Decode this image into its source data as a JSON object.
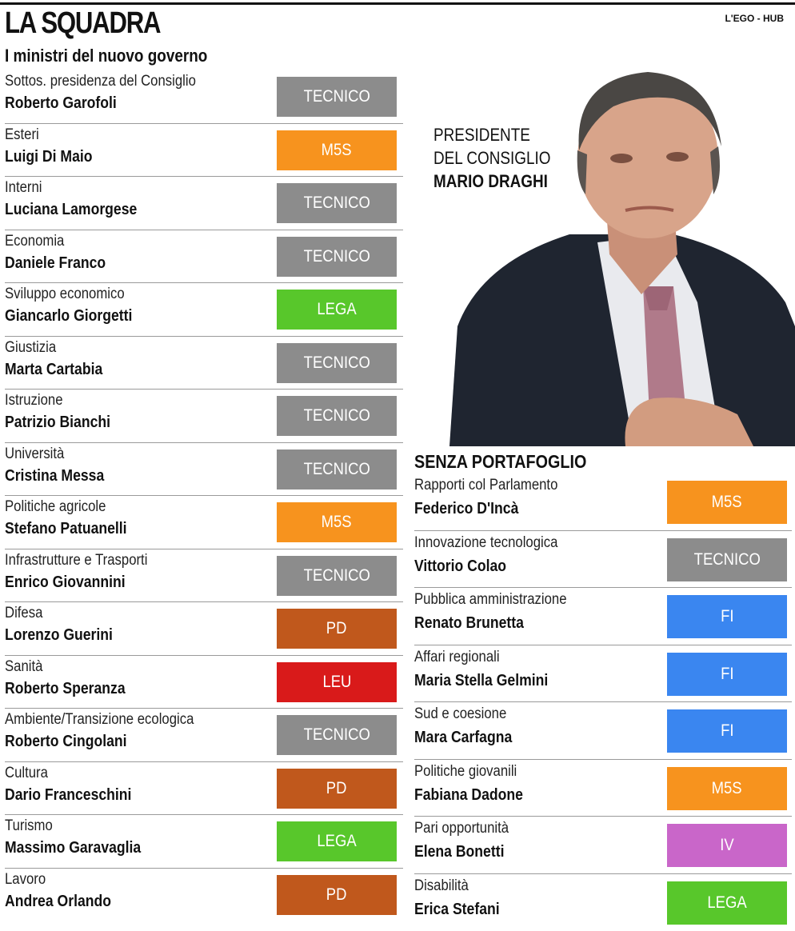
{
  "title": "LA SQUADRA",
  "source": "L'EGO - HUB",
  "subtitle": "I ministri del nuovo governo",
  "president": {
    "label_line1": "PRESIDENTE",
    "label_line2": "DEL CONSIGLIO",
    "name": "MARIO DRAGHI"
  },
  "colors": {
    "TECNICO": "#8c8c8c",
    "M5S": "#f7931e",
    "LEGA": "#58c72b",
    "PD": "#c0581c",
    "LEU": "#d91a1a",
    "FI": "#3a86f0",
    "IV": "#c966c9"
  },
  "ministers": [
    {
      "role": "Sottos. presidenza del Consiglio",
      "name": "Roberto Garofoli",
      "party": "TECNICO"
    },
    {
      "role": "Esteri",
      "name": "Luigi Di Maio",
      "party": "M5S"
    },
    {
      "role": "Interni",
      "name": "Luciana Lamorgese",
      "party": "TECNICO"
    },
    {
      "role": "Economia",
      "name": "Daniele Franco",
      "party": "TECNICO"
    },
    {
      "role": "Sviluppo economico",
      "name": "Giancarlo Giorgetti",
      "party": "LEGA"
    },
    {
      "role": "Giustizia",
      "name": "Marta Cartabia",
      "party": "TECNICO"
    },
    {
      "role": "Istruzione",
      "name": "Patrizio Bianchi",
      "party": "TECNICO"
    },
    {
      "role": "Università",
      "name": "Cristina Messa",
      "party": "TECNICO"
    },
    {
      "role": "Politiche agricole",
      "name": "Stefano Patuanelli",
      "party": "M5S"
    },
    {
      "role": "Infrastrutture e Trasporti",
      "name": "Enrico Giovannini",
      "party": "TECNICO"
    },
    {
      "role": "Difesa",
      "name": "Lorenzo Guerini",
      "party": "PD"
    },
    {
      "role": "Sanità",
      "name": "Roberto Speranza",
      "party": "LEU"
    },
    {
      "role": "Ambiente/Transizione ecologica",
      "name": "Roberto Cingolani",
      "party": "TECNICO"
    },
    {
      "role": "Cultura",
      "name": "Dario Franceschini",
      "party": "PD"
    },
    {
      "role": "Turismo",
      "name": "Massimo Garavaglia",
      "party": "LEGA"
    },
    {
      "role": "Lavoro",
      "name": "Andrea Orlando",
      "party": "PD"
    }
  ],
  "without_portfolio": {
    "heading": "SENZA PORTAFOGLIO",
    "ministers": [
      {
        "role": "Rapporti col Parlamento",
        "name": "Federico D'Incà",
        "party": "M5S"
      },
      {
        "role": "Innovazione tecnologica",
        "name": "Vittorio Colao",
        "party": "TECNICO"
      },
      {
        "role": "Pubblica amministrazione",
        "name": "Renato Brunetta",
        "party": "FI"
      },
      {
        "role": "Affari regionali",
        "name": "Maria Stella Gelmini",
        "party": "FI"
      },
      {
        "role": "Sud e coesione",
        "name": "Mara Carfagna",
        "party": "FI"
      },
      {
        "role": "Politiche giovanili",
        "name": "Fabiana Dadone",
        "party": "M5S"
      },
      {
        "role": "Pari opportunità",
        "name": "Elena Bonetti",
        "party": "IV"
      },
      {
        "role": "Disabilità",
        "name": "Erica Stefani",
        "party": "LEGA"
      }
    ]
  }
}
